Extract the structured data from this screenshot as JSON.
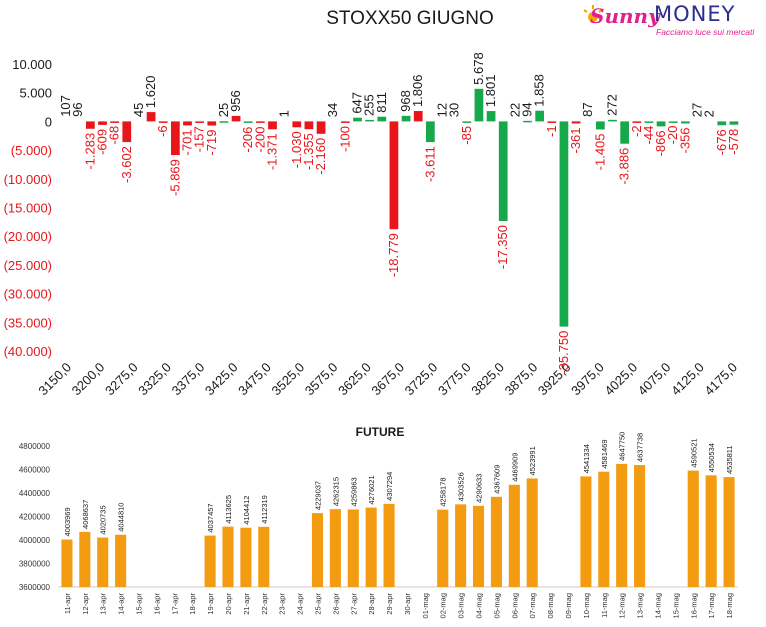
{
  "brand": {
    "name_part1": "Sunny",
    "name_part2": "MONEY",
    "tagline": "Facciamo luce sui mercati"
  },
  "colors": {
    "positive": "#17a84b",
    "negative": "#e8151b",
    "future": "#f39c12",
    "neg_text": "#e8151b",
    "pos_text": "#1a1a1a"
  },
  "chart_data": [
    {
      "type": "bar",
      "title": "STOXX50 GIUGNO",
      "xlabel": "",
      "ylabel": "",
      "ylim": [
        -40000,
        10000
      ],
      "yticks": [
        "10.000",
        "5.000",
        "0",
        "(5.000)",
        "(10.000)",
        "(15.000)",
        "(20.000)",
        "(25.000)",
        "(30.000)",
        "(35.000)",
        "(40.000)"
      ],
      "x_tick_labels": [
        "3150,0",
        "3200,0",
        "3275,0",
        "3325,0",
        "3375,0",
        "3425,0",
        "3475,0",
        "3525,0",
        "3575,0",
        "3625,0",
        "3675,0",
        "3725,0",
        "3775,0",
        "3825,0",
        "3875,0",
        "3925,0",
        "3975,0",
        "4025,0",
        "4075,0",
        "4125,0",
        "4175,0"
      ],
      "grid": false,
      "series": [
        {
          "values": [
            107,
            96,
            -1283,
            -609,
            -68,
            -3602,
            45,
            1620,
            -6,
            -5869,
            -701,
            -157,
            -719,
            25,
            956,
            -206,
            -200,
            -1371,
            1,
            -1030,
            -1355,
            -2160,
            34,
            -100,
            647,
            255,
            811,
            -18779,
            968,
            1806,
            -3611,
            12,
            30,
            -85,
            5678,
            1801,
            -17350,
            22,
            94,
            1858,
            -1,
            -35750,
            -361,
            87,
            -1405,
            272,
            -3886,
            -2,
            -44,
            -866,
            -20,
            -356,
            27,
            2,
            -676,
            -578
          ],
          "labels": [
            "107",
            "96",
            "-1.283",
            "-609",
            "-68",
            "-3.602",
            "45",
            "1.620",
            "-6",
            "-5.869",
            "-701",
            "-157",
            "-719",
            "25",
            "956",
            "-206",
            "-200",
            "-1.371",
            "1",
            "-1.030",
            "-1.355",
            "-2.160",
            "34",
            "-100",
            "647",
            "255",
            "811",
            "-18.779",
            "968",
            "1.806",
            "-3.611",
            "12",
            "30",
            "-85",
            "5.678",
            "1.801",
            "-17.350",
            "22",
            "94",
            "1.858",
            "-1",
            "-35.750",
            "-361",
            "87",
            "-1.405",
            "272",
            "-3.886",
            "-2",
            "-44",
            "-866",
            "-20",
            "-356",
            "27",
            "2",
            "-676",
            "-578"
          ],
          "colors": [
            "none",
            "none",
            "red",
            "red",
            "red",
            "red",
            "none",
            "red",
            "red",
            "red",
            "red",
            "red",
            "red",
            "green",
            "red",
            "green",
            "red",
            "red",
            "none",
            "red",
            "red",
            "red",
            "none",
            "red",
            "green",
            "green",
            "green",
            "red",
            "green",
            "red",
            "green",
            "none",
            "none",
            "green",
            "green",
            "green",
            "green",
            "none",
            "green",
            "green",
            "red",
            "green",
            "red",
            "none",
            "green",
            "green",
            "green",
            "red",
            "green",
            "green",
            "green",
            "green",
            "none",
            "none",
            "green",
            "green"
          ]
        }
      ]
    },
    {
      "type": "bar",
      "title": "FUTURE",
      "xlabel": "",
      "ylabel": "",
      "ylim": [
        3600000,
        4800000
      ],
      "yticks": [
        "4800000",
        "4600000",
        "4400000",
        "4200000",
        "4000000",
        "3800000",
        "3600000"
      ],
      "categories": [
        "11-apr",
        "12-apr",
        "13-apr",
        "14-apr",
        "15-apr",
        "16-apr",
        "17-apr",
        "18-apr",
        "19-apr",
        "20-apr",
        "21-apr",
        "22-apr",
        "23-apr",
        "24-apr",
        "25-apr",
        "26-apr",
        "27-apr",
        "28-apr",
        "29-apr",
        "30-apr",
        "01-mag",
        "02-mag",
        "03-mag",
        "04-mag",
        "05-mag",
        "06-mag",
        "07-mag",
        "08-mag",
        "09-mag",
        "10-mag",
        "11-mag",
        "12-mag",
        "13-mag",
        "14-mag",
        "15-mag",
        "16-mag",
        "17-mag",
        "18-mag"
      ],
      "values": [
        4003969,
        4068637,
        4020735,
        4044810,
        null,
        null,
        null,
        null,
        4037457,
        4113625,
        4104412,
        4112319,
        null,
        null,
        4229037,
        4262315,
        4259863,
        4276021,
        4307294,
        null,
        null,
        4258178,
        4303526,
        4290633,
        4367609,
        4469909,
        4523991,
        null,
        null,
        4541334,
        4581469,
        4647750,
        4637738,
        null,
        null,
        4590521,
        4550534,
        4535811
      ],
      "labels": [
        "4003969",
        "4068637",
        "4020735",
        "4044810",
        "",
        "",
        "",
        "",
        "4037457",
        "4113625",
        "4104412",
        "4112319",
        "",
        "",
        "4229037",
        "4262315",
        "4259863",
        "4276021",
        "4307294",
        "",
        "",
        "4258178",
        "4303526",
        "4290633",
        "4367609",
        "4469909",
        "4523991",
        "",
        "",
        "4541334",
        "4581469",
        "4647750",
        "4637738",
        "",
        "",
        "4590521",
        "4550534",
        "4535811"
      ],
      "grid": false
    }
  ]
}
